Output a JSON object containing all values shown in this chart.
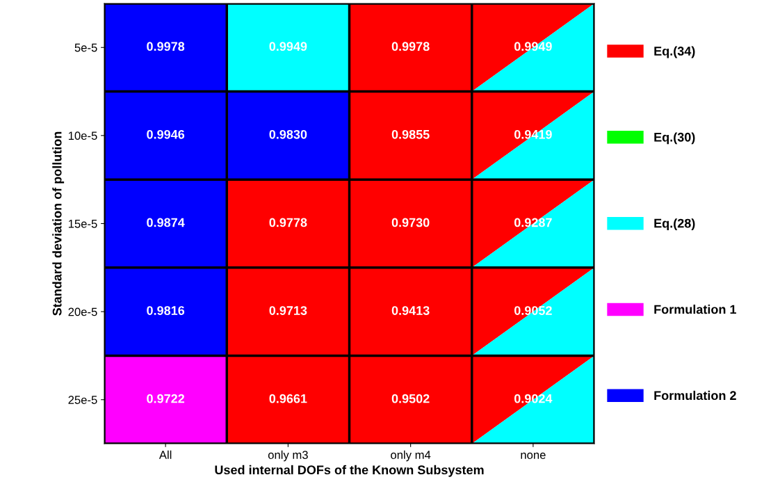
{
  "chart_data": {
    "type": "heatmap",
    "xlabel": "Used internal DOFs of the Known Subsystem",
    "ylabel": "Standard deviation of pollution",
    "categories": [
      "All",
      "only m3",
      "only m4",
      "none"
    ],
    "y_categories": [
      "5e-5",
      "10e-5",
      "15e-5",
      "20e-5",
      "25e-5"
    ],
    "cells": [
      [
        0.9978,
        0.9949,
        0.9978,
        0.9949
      ],
      [
        0.9946,
        0.983,
        0.9855,
        0.9419
      ],
      [
        0.9874,
        0.9778,
        0.973,
        0.9287
      ],
      [
        0.9816,
        0.9713,
        0.9413,
        0.9052
      ],
      [
        0.9722,
        0.9661,
        0.9502,
        0.9024
      ]
    ],
    "cell_labels": [
      [
        "0.9978",
        "0.9949",
        "0.9978",
        "0.9949"
      ],
      [
        "0.9946",
        "0.9830",
        "0.9855",
        "0.9419"
      ],
      [
        "0.9874",
        "0.9778",
        "0.9730",
        "0.9287"
      ],
      [
        "0.9816",
        "0.9713",
        "0.9413",
        "0.9052"
      ],
      [
        "0.9722",
        "0.9661",
        "0.9502",
        "0.9024"
      ]
    ],
    "colors": [
      [
        "#0000ff",
        "#00ffff",
        "#ff0000",
        [
          "#ff0000",
          "#00ffff"
        ]
      ],
      [
        "#0000ff",
        "#0000ff",
        "#ff0000",
        [
          "#ff0000",
          "#00ffff"
        ]
      ],
      [
        "#0000ff",
        "#ff0000",
        "#ff0000",
        [
          "#ff0000",
          "#00ffff"
        ]
      ],
      [
        "#0000ff",
        "#ff0000",
        "#ff0000",
        [
          "#ff0000",
          "#00ffff"
        ]
      ],
      [
        "#ff00ff",
        "#ff0000",
        "#ff0000",
        [
          "#ff0000",
          "#00ffff"
        ]
      ]
    ],
    "series": [
      {
        "name": "Eq.(34)",
        "color": "#ff0000",
        "values": [
          null,
          null,
          null,
          null
        ]
      },
      {
        "name": "Eq.(30)",
        "color": "#00ff00",
        "values": [
          null,
          null,
          null,
          null
        ]
      },
      {
        "name": "Eq.(28)",
        "color": "#00ffff",
        "values": [
          null,
          null,
          null,
          null
        ]
      },
      {
        "name": "Formulation 1",
        "color": "#ff00ff",
        "values": [
          null,
          null,
          null,
          null
        ]
      },
      {
        "name": "Formulation 2",
        "color": "#0000ff",
        "values": [
          null,
          null,
          null,
          null
        ]
      }
    ],
    "legend": "right"
  }
}
